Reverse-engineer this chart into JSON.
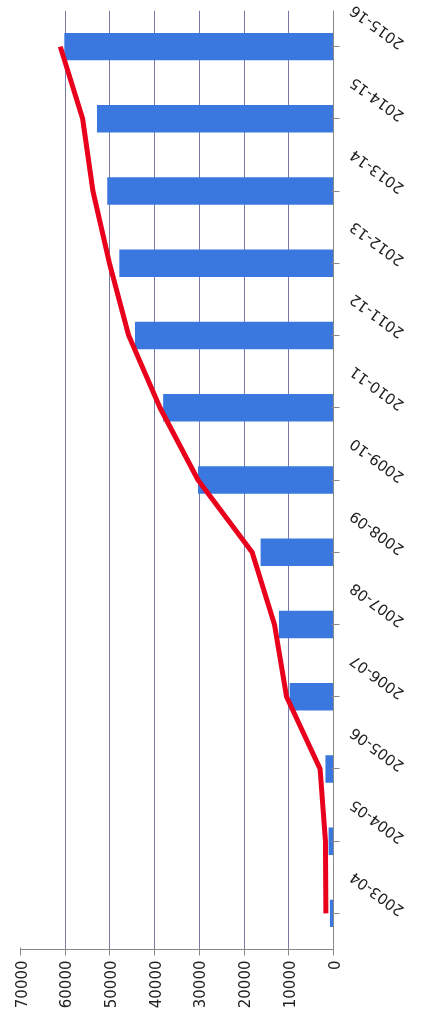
{
  "chart_data": {
    "type": "bar",
    "orientation": "horizontal",
    "categories": [
      "2015-16",
      "2014-15",
      "2013-14",
      "2012-13",
      "2011-12",
      "2010-11",
      "2009-10",
      "2008-09",
      "2007-08",
      "2006-07",
      "2005-06",
      "2004-05",
      "2003-04"
    ],
    "series": [
      {
        "color": "#3a78e0",
        "values": [
          60200,
          52900,
          50600,
          47900,
          44400,
          38100,
          30300,
          16300,
          12200,
          9800,
          1800,
          1100,
          800
        ]
      },
      {
        "type": "line",
        "color": "#e8001c",
        "values": [
          61100,
          56100,
          53800,
          50100,
          45800,
          38800,
          30300,
          18200,
          13200,
          10500,
          3000,
          1800,
          1700
        ]
      }
    ],
    "xlim": [
      70000,
      0
    ],
    "xticks": [
      0,
      10000,
      20000,
      30000,
      40000,
      50000,
      60000,
      70000
    ],
    "grid": "x"
  }
}
